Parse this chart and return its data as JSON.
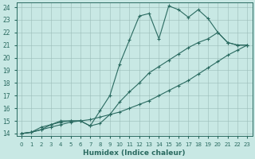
{
  "xlabel": "Humidex (Indice chaleur)",
  "bg_color": "#c8e8e4",
  "line_color": "#2a6a60",
  "xlim_min": -0.5,
  "xlim_max": 23.5,
  "ylim_min": 13.8,
  "ylim_max": 24.35,
  "yticks": [
    14,
    15,
    16,
    17,
    18,
    19,
    20,
    21,
    22,
    23,
    24
  ],
  "xticks": [
    0,
    1,
    2,
    3,
    4,
    5,
    6,
    7,
    8,
    9,
    10,
    11,
    12,
    13,
    14,
    15,
    16,
    17,
    18,
    19,
    20,
    21,
    22,
    23
  ],
  "line_bot_x": [
    0,
    1,
    2,
    3,
    4,
    5,
    6,
    7,
    8,
    9,
    10,
    11,
    12,
    13,
    14,
    15,
    16,
    17,
    18,
    19,
    20,
    21,
    22,
    23
  ],
  "line_bot_y": [
    14.0,
    14.1,
    14.3,
    14.5,
    14.7,
    14.9,
    15.0,
    15.1,
    15.3,
    15.5,
    15.7,
    16.0,
    16.3,
    16.6,
    17.0,
    17.4,
    17.8,
    18.2,
    18.7,
    19.2,
    19.7,
    20.2,
    20.6,
    21.0
  ],
  "line_mid_x": [
    0,
    1,
    2,
    3,
    4,
    5,
    6,
    7,
    8,
    9,
    10,
    11,
    12,
    13,
    14,
    15,
    16,
    17,
    18,
    19,
    20,
    21,
    22,
    23
  ],
  "line_mid_y": [
    14.0,
    14.1,
    14.3,
    14.7,
    14.9,
    15.0,
    15.0,
    14.6,
    14.8,
    15.5,
    16.5,
    17.3,
    18.0,
    18.8,
    19.3,
    19.8,
    20.3,
    20.8,
    21.2,
    21.5,
    22.0,
    21.2,
    21.0,
    21.0
  ],
  "line_top_x": [
    0,
    1,
    2,
    3,
    4,
    5,
    6,
    7,
    8,
    9,
    10,
    11,
    12,
    13,
    14,
    15,
    16,
    17,
    18,
    19,
    20,
    21,
    22,
    23
  ],
  "line_top_y": [
    14.0,
    14.1,
    14.5,
    14.7,
    15.0,
    15.0,
    15.0,
    14.6,
    15.8,
    17.0,
    19.5,
    21.4,
    23.3,
    23.5,
    21.5,
    24.1,
    23.8,
    23.2,
    23.8,
    23.1,
    22.0,
    21.2,
    21.0,
    21.0
  ]
}
